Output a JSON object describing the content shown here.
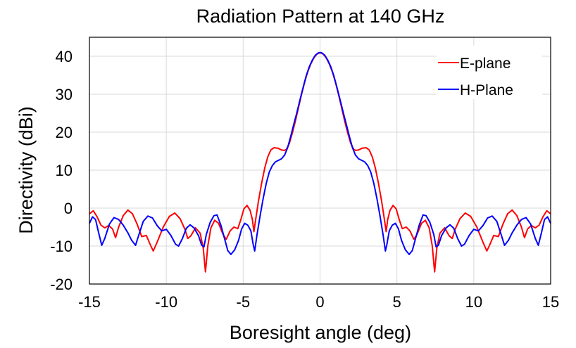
{
  "chart_data": {
    "type": "line",
    "title": "Radiation Pattern at 140 GHz",
    "xlabel": "Boresight angle (deg)",
    "ylabel": "Directivity (dBi)",
    "xlim": [
      -15,
      15
    ],
    "ylim": [
      -20,
      45
    ],
    "xticks": [
      -15,
      -10,
      -5,
      0,
      5,
      10,
      15
    ],
    "yticks": [
      -20,
      -10,
      0,
      10,
      20,
      30,
      40
    ],
    "grid": true,
    "legend_position": "top-right",
    "series": [
      {
        "name": "E-plane",
        "color": "#ff0000",
        "points": [
          [
            -15.0,
            -1.5
          ],
          [
            -14.75,
            -0.7
          ],
          [
            -14.5,
            -2.3
          ],
          [
            -14.25,
            -4.5
          ],
          [
            -14.0,
            -5.2
          ],
          [
            -13.75,
            -4.6
          ],
          [
            -13.5,
            -5.5
          ],
          [
            -13.3,
            -7.8
          ],
          [
            -13.1,
            -5.0
          ],
          [
            -12.8,
            -2.0
          ],
          [
            -12.5,
            -0.5
          ],
          [
            -12.2,
            -1.5
          ],
          [
            -11.9,
            -4.2
          ],
          [
            -11.6,
            -7.5
          ],
          [
            -11.3,
            -7.2
          ],
          [
            -11.0,
            -10.0
          ],
          [
            -10.85,
            -11.3
          ],
          [
            -10.6,
            -9.0
          ],
          [
            -10.2,
            -5.0
          ],
          [
            -9.8,
            -2.2
          ],
          [
            -9.45,
            -1.3
          ],
          [
            -9.1,
            -2.8
          ],
          [
            -8.8,
            -5.5
          ],
          [
            -8.6,
            -8.0
          ],
          [
            -8.4,
            -7.3
          ],
          [
            -8.1,
            -5.2
          ],
          [
            -7.8,
            -6.6
          ],
          [
            -7.6,
            -10.5
          ],
          [
            -7.45,
            -16.8
          ],
          [
            -7.3,
            -10.0
          ],
          [
            -7.1,
            -5.2
          ],
          [
            -6.85,
            -3.2
          ],
          [
            -6.6,
            -4.0
          ],
          [
            -6.3,
            -7.0
          ],
          [
            -6.1,
            -8.2
          ],
          [
            -5.85,
            -6.0
          ],
          [
            -5.6,
            -5.0
          ],
          [
            -5.35,
            -5.4
          ],
          [
            -5.15,
            -3.0
          ],
          [
            -4.95,
            -0.2
          ],
          [
            -4.75,
            0.7
          ],
          [
            -4.55,
            -0.6
          ],
          [
            -4.4,
            -3.0
          ],
          [
            -4.3,
            -6.2
          ],
          [
            -4.15,
            -2.0
          ],
          [
            -4.0,
            2.0
          ],
          [
            -3.8,
            6.5
          ],
          [
            -3.6,
            10.5
          ],
          [
            -3.4,
            13.5
          ],
          [
            -3.2,
            15.3
          ],
          [
            -3.0,
            15.9
          ],
          [
            -2.75,
            15.8
          ],
          [
            -2.5,
            15.3
          ],
          [
            -2.35,
            15.2
          ],
          [
            -2.2,
            15.4
          ],
          [
            -2.0,
            17.0
          ],
          [
            -1.8,
            19.8
          ],
          [
            -1.6,
            23.0
          ],
          [
            -1.4,
            26.5
          ],
          [
            -1.2,
            30.0
          ],
          [
            -1.0,
            33.2
          ],
          [
            -0.8,
            35.9
          ],
          [
            -0.6,
            38.0
          ],
          [
            -0.4,
            39.6
          ],
          [
            -0.2,
            40.6
          ],
          [
            0.0,
            40.9
          ],
          [
            0.2,
            40.6
          ],
          [
            0.4,
            39.6
          ],
          [
            0.6,
            38.0
          ],
          [
            0.8,
            35.9
          ],
          [
            1.0,
            33.2
          ],
          [
            1.2,
            30.0
          ],
          [
            1.4,
            26.5
          ],
          [
            1.6,
            23.0
          ],
          [
            1.8,
            19.8
          ],
          [
            2.0,
            17.0
          ],
          [
            2.2,
            15.4
          ],
          [
            2.35,
            15.2
          ],
          [
            2.5,
            15.3
          ],
          [
            2.75,
            15.8
          ],
          [
            3.0,
            15.9
          ],
          [
            3.2,
            15.3
          ],
          [
            3.4,
            13.5
          ],
          [
            3.6,
            10.5
          ],
          [
            3.8,
            6.5
          ],
          [
            4.0,
            2.0
          ],
          [
            4.15,
            -2.0
          ],
          [
            4.3,
            -6.2
          ],
          [
            4.4,
            -3.0
          ],
          [
            4.55,
            -0.6
          ],
          [
            4.75,
            0.7
          ],
          [
            4.95,
            -0.2
          ],
          [
            5.15,
            -3.0
          ],
          [
            5.35,
            -5.4
          ],
          [
            5.6,
            -5.0
          ],
          [
            5.85,
            -6.0
          ],
          [
            6.1,
            -8.2
          ],
          [
            6.3,
            -7.0
          ],
          [
            6.6,
            -4.0
          ],
          [
            6.85,
            -3.2
          ],
          [
            7.1,
            -5.2
          ],
          [
            7.3,
            -10.0
          ],
          [
            7.45,
            -16.8
          ],
          [
            7.6,
            -10.5
          ],
          [
            7.8,
            -6.6
          ],
          [
            8.1,
            -5.2
          ],
          [
            8.4,
            -7.3
          ],
          [
            8.6,
            -8.0
          ],
          [
            8.8,
            -5.5
          ],
          [
            9.1,
            -2.8
          ],
          [
            9.45,
            -1.3
          ],
          [
            9.8,
            -2.2
          ],
          [
            10.2,
            -5.0
          ],
          [
            10.6,
            -9.0
          ],
          [
            10.85,
            -11.3
          ],
          [
            11.0,
            -10.0
          ],
          [
            11.3,
            -7.2
          ],
          [
            11.6,
            -7.5
          ],
          [
            11.9,
            -4.2
          ],
          [
            12.2,
            -1.5
          ],
          [
            12.5,
            -0.5
          ],
          [
            12.8,
            -2.0
          ],
          [
            13.1,
            -5.0
          ],
          [
            13.3,
            -7.8
          ],
          [
            13.5,
            -5.5
          ],
          [
            13.75,
            -4.6
          ],
          [
            14.0,
            -5.2
          ],
          [
            14.25,
            -4.5
          ],
          [
            14.5,
            -2.3
          ],
          [
            14.75,
            -0.7
          ],
          [
            15.0,
            -1.5
          ]
        ]
      },
      {
        "name": "H-Plane",
        "color": "#0000ff",
        "points": [
          [
            -15.0,
            -4.0
          ],
          [
            -14.8,
            -2.3
          ],
          [
            -14.6,
            -3.0
          ],
          [
            -14.4,
            -6.5
          ],
          [
            -14.2,
            -9.8
          ],
          [
            -14.0,
            -8.0
          ],
          [
            -13.7,
            -4.2
          ],
          [
            -13.4,
            -2.5
          ],
          [
            -13.1,
            -3.0
          ],
          [
            -12.8,
            -4.5
          ],
          [
            -12.5,
            -6.5
          ],
          [
            -12.25,
            -8.5
          ],
          [
            -12.0,
            -9.8
          ],
          [
            -11.8,
            -7.2
          ],
          [
            -11.5,
            -3.5
          ],
          [
            -11.2,
            -2.1
          ],
          [
            -10.9,
            -2.6
          ],
          [
            -10.6,
            -4.6
          ],
          [
            -10.3,
            -6.0
          ],
          [
            -10.0,
            -5.6
          ],
          [
            -9.7,
            -7.2
          ],
          [
            -9.4,
            -9.5
          ],
          [
            -9.2,
            -10.0
          ],
          [
            -8.95,
            -8.0
          ],
          [
            -8.7,
            -5.3
          ],
          [
            -8.45,
            -4.4
          ],
          [
            -8.2,
            -5.2
          ],
          [
            -7.9,
            -7.3
          ],
          [
            -7.7,
            -9.8
          ],
          [
            -7.55,
            -10.2
          ],
          [
            -7.4,
            -7.0
          ],
          [
            -7.15,
            -3.8
          ],
          [
            -6.9,
            -2.0
          ],
          [
            -6.7,
            -1.8
          ],
          [
            -6.45,
            -4.5
          ],
          [
            -6.2,
            -8.2
          ],
          [
            -6.0,
            -11.2
          ],
          [
            -5.8,
            -12.2
          ],
          [
            -5.55,
            -11.0
          ],
          [
            -5.3,
            -8.5
          ],
          [
            -5.1,
            -5.5
          ],
          [
            -4.9,
            -4.0
          ],
          [
            -4.7,
            -4.5
          ],
          [
            -4.5,
            -6.0
          ],
          [
            -4.35,
            -9.5
          ],
          [
            -4.25,
            -11.3
          ],
          [
            -4.1,
            -7.0
          ],
          [
            -3.9,
            -2.0
          ],
          [
            -3.7,
            2.5
          ],
          [
            -3.5,
            6.5
          ],
          [
            -3.3,
            9.5
          ],
          [
            -3.1,
            11.2
          ],
          [
            -2.9,
            12.2
          ],
          [
            -2.7,
            12.6
          ],
          [
            -2.5,
            13.0
          ],
          [
            -2.3,
            14.0
          ],
          [
            -2.1,
            16.0
          ],
          [
            -1.9,
            19.0
          ],
          [
            -1.7,
            22.2
          ],
          [
            -1.5,
            25.3
          ],
          [
            -1.3,
            28.6
          ],
          [
            -1.1,
            31.8
          ],
          [
            -0.9,
            34.8
          ],
          [
            -0.7,
            37.2
          ],
          [
            -0.5,
            39.0
          ],
          [
            -0.3,
            40.3
          ],
          [
            -0.1,
            40.9
          ],
          [
            0.0,
            41.0
          ],
          [
            0.1,
            40.9
          ],
          [
            0.3,
            40.3
          ],
          [
            0.5,
            39.0
          ],
          [
            0.7,
            37.2
          ],
          [
            0.9,
            34.8
          ],
          [
            1.1,
            31.8
          ],
          [
            1.3,
            28.6
          ],
          [
            1.5,
            25.3
          ],
          [
            1.7,
            22.2
          ],
          [
            1.9,
            19.0
          ],
          [
            2.1,
            16.0
          ],
          [
            2.3,
            14.0
          ],
          [
            2.5,
            13.0
          ],
          [
            2.7,
            12.6
          ],
          [
            2.9,
            12.2
          ],
          [
            3.1,
            11.2
          ],
          [
            3.3,
            9.5
          ],
          [
            3.5,
            6.5
          ],
          [
            3.7,
            2.5
          ],
          [
            3.9,
            -2.0
          ],
          [
            4.1,
            -7.0
          ],
          [
            4.25,
            -11.3
          ],
          [
            4.35,
            -9.5
          ],
          [
            4.5,
            -6.0
          ],
          [
            4.7,
            -4.5
          ],
          [
            4.9,
            -4.0
          ],
          [
            5.1,
            -5.5
          ],
          [
            5.3,
            -8.5
          ],
          [
            5.55,
            -11.0
          ],
          [
            5.8,
            -12.2
          ],
          [
            6.0,
            -11.2
          ],
          [
            6.2,
            -8.2
          ],
          [
            6.45,
            -4.5
          ],
          [
            6.7,
            -1.8
          ],
          [
            6.9,
            -2.0
          ],
          [
            7.15,
            -3.8
          ],
          [
            7.4,
            -7.0
          ],
          [
            7.55,
            -10.2
          ],
          [
            7.7,
            -9.8
          ],
          [
            7.9,
            -7.3
          ],
          [
            8.2,
            -5.2
          ],
          [
            8.45,
            -4.4
          ],
          [
            8.7,
            -5.3
          ],
          [
            8.95,
            -8.0
          ],
          [
            9.2,
            -10.0
          ],
          [
            9.4,
            -9.5
          ],
          [
            9.7,
            -7.2
          ],
          [
            10.0,
            -5.6
          ],
          [
            10.3,
            -6.0
          ],
          [
            10.6,
            -4.6
          ],
          [
            10.9,
            -2.6
          ],
          [
            11.2,
            -2.1
          ],
          [
            11.5,
            -3.5
          ],
          [
            11.8,
            -7.2
          ],
          [
            12.0,
            -9.8
          ],
          [
            12.25,
            -8.5
          ],
          [
            12.5,
            -6.5
          ],
          [
            12.8,
            -4.5
          ],
          [
            13.1,
            -3.0
          ],
          [
            13.4,
            -2.5
          ],
          [
            13.7,
            -4.2
          ],
          [
            14.0,
            -8.0
          ],
          [
            14.2,
            -9.8
          ],
          [
            14.4,
            -6.5
          ],
          [
            14.6,
            -3.0
          ],
          [
            14.8,
            -2.3
          ],
          [
            15.0,
            -4.0
          ]
        ]
      }
    ]
  }
}
